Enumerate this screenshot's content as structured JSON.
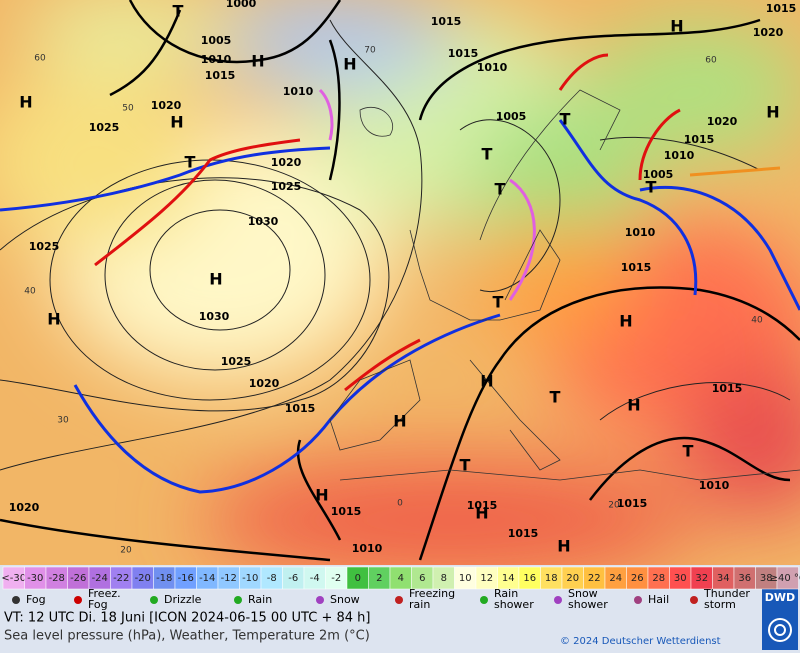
{
  "map": {
    "pressure_centers": [
      "H",
      "H",
      "T",
      "H",
      "H",
      "H",
      "H",
      "T",
      "T",
      "T",
      "H",
      "H",
      "T",
      "H",
      "H",
      "T",
      "H",
      "H",
      "H",
      "T",
      "H",
      "H",
      "T",
      "T",
      "T"
    ],
    "isobar_labels": [
      "1005",
      "1010",
      "1015",
      "1020",
      "1025",
      "1020",
      "1025",
      "1030",
      "1025",
      "1030",
      "1025",
      "1020",
      "1015",
      "1020",
      "1015",
      "1010",
      "1015",
      "1015",
      "1015",
      "1010",
      "1015",
      "1015",
      "1010",
      "1010",
      "1005",
      "1015",
      "1020",
      "1010",
      "1015",
      "1015",
      "1005",
      "1010",
      "1020",
      "1015",
      "1000"
    ],
    "temperature_labels": [
      "60",
      "50",
      "40",
      "30",
      "20",
      "70",
      "60",
      "40",
      "0",
      "20"
    ]
  },
  "scale": {
    "ticks": [
      {
        "value": -32,
        "label": "<-30"
      },
      -30,
      -28,
      -26,
      -24,
      -22,
      -20,
      -18,
      -16,
      -14,
      -12,
      -10,
      -8,
      -6,
      -4,
      -2,
      0,
      2,
      4,
      6,
      8,
      10,
      12,
      14,
      16,
      18,
      20,
      22,
      24,
      26,
      28,
      30,
      32,
      34,
      36,
      38,
      {
        "value": 40,
        "label": "≥40 °C"
      }
    ],
    "colors": [
      "#f0b0f0",
      "#e090e8",
      "#d080e0",
      "#c070d8",
      "#b070e0",
      "#a080f0",
      "#8080f0",
      "#7090f0",
      "#70a0ff",
      "#80b8ff",
      "#90c8ff",
      "#a0d8ff",
      "#b0e8ff",
      "#c0f0f0",
      "#d0f8f0",
      "#e0fff0",
      "#40c040",
      "#60d060",
      "#90e070",
      "#b0e890",
      "#d0f0b0",
      "#ffffe0",
      "#ffffc0",
      "#ffff90",
      "#ffff60",
      "#ffe060",
      "#ffd050",
      "#ffc040",
      "#ffa040",
      "#ff9040",
      "#ff7050",
      "#ff5050",
      "#f04050",
      "#e06060",
      "#d07070",
      "#c08080",
      "#d0a0b0"
    ]
  },
  "legend": [
    [
      "Fog"
    ],
    [
      "Freez.",
      "Fog"
    ],
    [
      "Drizzle"
    ],
    [
      "Rain"
    ],
    [
      "Snow"
    ],
    [
      "Freezing",
      "rain"
    ],
    [
      "Rain",
      "shower"
    ],
    [
      "Snow",
      "shower"
    ],
    [
      "Hail"
    ],
    [
      "Thunder",
      "storm"
    ]
  ],
  "footer": {
    "valid_time": "VT: 12 UTC Di.  18 Juni [ICON 2024-06-15  00 UTC + 84 h]",
    "description": "Sea level pressure (hPa), Weather, Temperature 2m (°C)",
    "copyright": "© 2024 Deutscher Wetterdienst",
    "logo": "DWD"
  }
}
